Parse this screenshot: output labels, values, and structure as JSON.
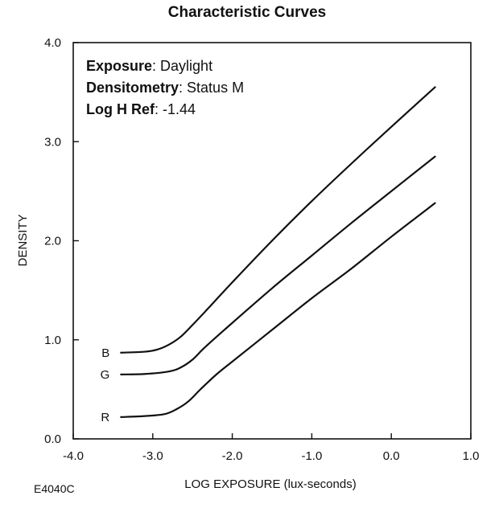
{
  "chart_data": {
    "type": "line",
    "title": "Characteristic Curves",
    "xlabel": "LOG EXPOSURE (lux-seconds)",
    "ylabel": "DENSITY",
    "xlim": [
      -4.0,
      1.0
    ],
    "ylim": [
      0.0,
      4.0
    ],
    "xticks": [
      "-4.0",
      "-3.0",
      "-2.0",
      "-1.0",
      "0.0",
      "1.0"
    ],
    "yticks": [
      "0.0",
      "1.0",
      "2.0",
      "3.0",
      "4.0"
    ],
    "grid": false,
    "annotations": [
      {
        "key": "Exposure",
        "value": ": Daylight"
      },
      {
        "key": "Densitometry",
        "value": ": Status M"
      },
      {
        "key": "Log H Ref",
        "value": ": -1.44"
      }
    ],
    "series": [
      {
        "name": "B",
        "points": [
          [
            -3.4,
            0.87
          ],
          [
            -3.1,
            0.88
          ],
          [
            -2.95,
            0.9
          ],
          [
            -2.8,
            0.95
          ],
          [
            -2.65,
            1.03
          ],
          [
            -2.5,
            1.15
          ],
          [
            -2.3,
            1.32
          ],
          [
            -2.0,
            1.58
          ],
          [
            -1.5,
            2.0
          ],
          [
            -1.0,
            2.4
          ],
          [
            -0.5,
            2.78
          ],
          [
            0.0,
            3.15
          ],
          [
            0.55,
            3.55
          ]
        ]
      },
      {
        "name": "G",
        "points": [
          [
            -3.4,
            0.65
          ],
          [
            -3.1,
            0.655
          ],
          [
            -2.8,
            0.68
          ],
          [
            -2.65,
            0.72
          ],
          [
            -2.5,
            0.8
          ],
          [
            -2.35,
            0.92
          ],
          [
            -2.1,
            1.1
          ],
          [
            -1.5,
            1.52
          ],
          [
            -1.0,
            1.85
          ],
          [
            -0.5,
            2.18
          ],
          [
            0.0,
            2.5
          ],
          [
            0.55,
            2.85
          ]
        ]
      },
      {
        "name": "R",
        "points": [
          [
            -3.4,
            0.22
          ],
          [
            -3.1,
            0.23
          ],
          [
            -2.85,
            0.25
          ],
          [
            -2.7,
            0.3
          ],
          [
            -2.55,
            0.38
          ],
          [
            -2.4,
            0.5
          ],
          [
            -2.2,
            0.65
          ],
          [
            -2.0,
            0.78
          ],
          [
            -1.5,
            1.1
          ],
          [
            -1.0,
            1.42
          ],
          [
            -0.5,
            1.72
          ],
          [
            0.0,
            2.04
          ],
          [
            0.55,
            2.38
          ]
        ]
      }
    ],
    "figure_code": "E4040C"
  }
}
